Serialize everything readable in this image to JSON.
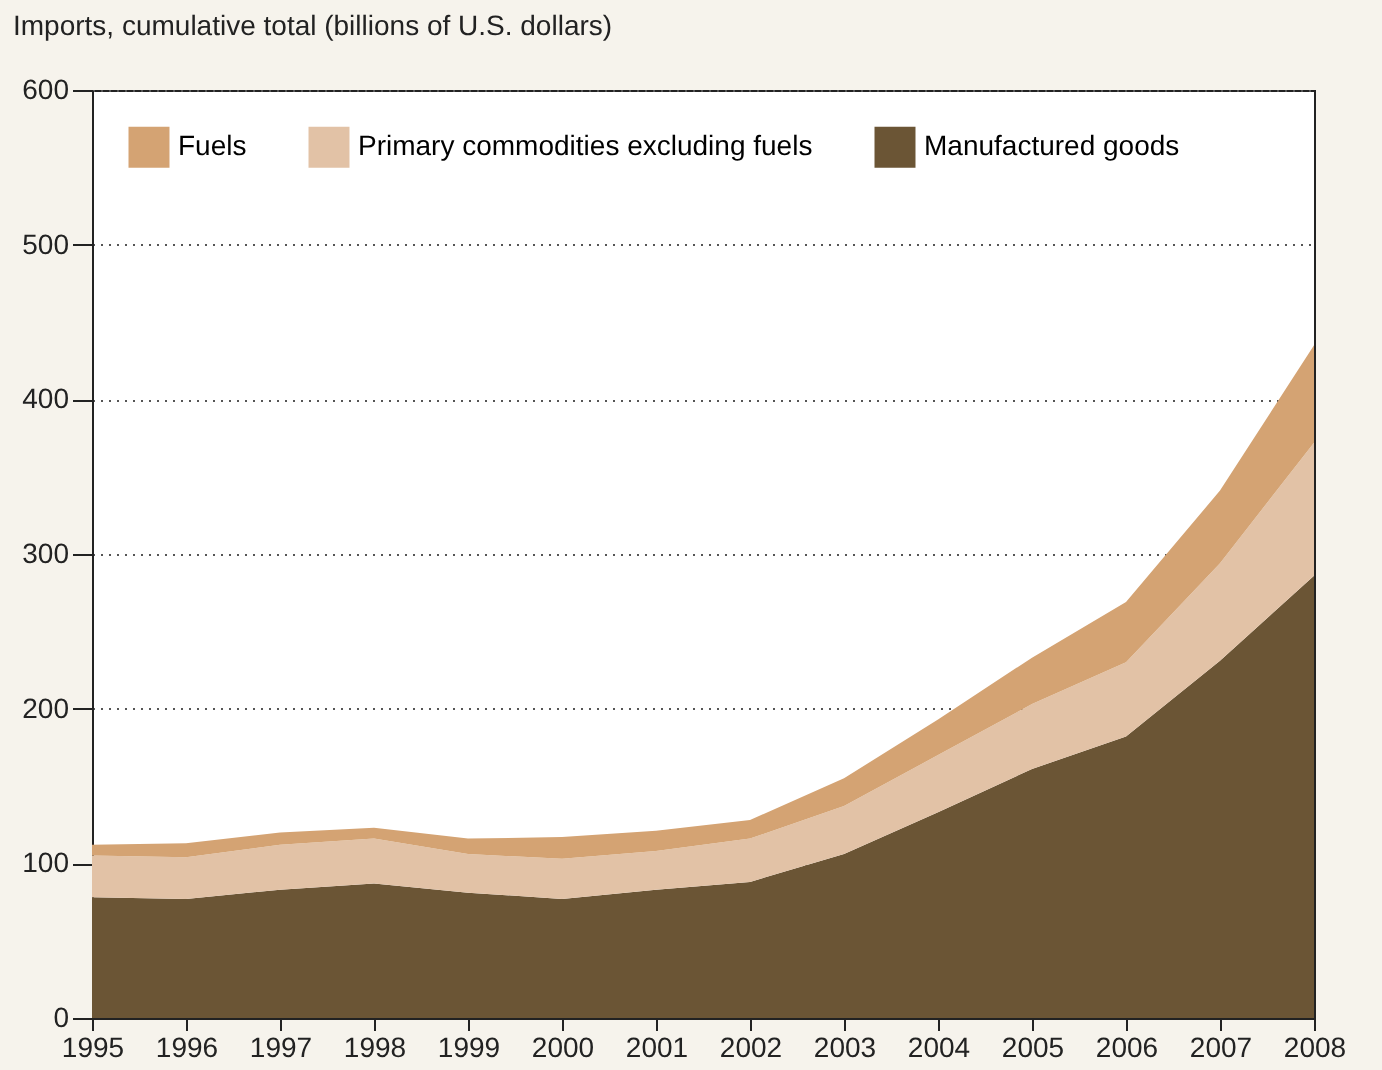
{
  "chart_data": {
    "type": "area",
    "ylabel": "Imports, cumulative total (billions of U.S. dollars)",
    "stacked": true,
    "x": [
      1995,
      1996,
      1997,
      1998,
      1999,
      2000,
      2001,
      2002,
      2003,
      2004,
      2005,
      2006,
      2007,
      2008
    ],
    "series": [
      {
        "name": "Manufactured goods",
        "color": "#6b5535",
        "values": [
          78,
          77,
          83,
          87,
          81,
          77,
          83,
          88,
          106,
          133,
          161,
          182,
          231,
          286
        ]
      },
      {
        "name": "Primary commodities excluding fuels",
        "color": "#e2c2a6",
        "values": [
          27,
          27,
          29,
          29,
          25,
          26,
          25,
          28,
          31,
          37,
          42,
          48,
          63,
          86
        ]
      },
      {
        "name": "Fuels",
        "color": "#d4a373",
        "values": [
          7,
          9,
          8,
          7,
          10,
          14,
          13,
          12,
          18,
          23,
          30,
          39,
          47,
          63
        ]
      }
    ],
    "xlim": [
      1995,
      2008
    ],
    "xticks": [
      1995,
      1996,
      1997,
      1998,
      1999,
      2000,
      2001,
      2002,
      2003,
      2004,
      2005,
      2006,
      2007,
      2008
    ],
    "ylim": [
      0,
      600
    ],
    "yticks": [
      0,
      100,
      200,
      300,
      400,
      500,
      600
    ],
    "grid": "y",
    "legend": "top left"
  }
}
